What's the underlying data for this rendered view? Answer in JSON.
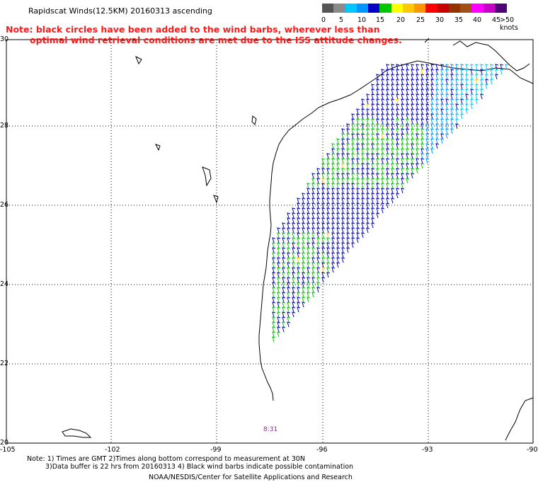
{
  "header": {
    "title": "Rapidscat Winds(12.5KM) 20160313 ascending",
    "note_line1": "Note: black circles have been added to the wind barbs, wherever less than",
    "note_line2": "optimal wind retrieval conditions are met due to the ISS attitude changes."
  },
  "legend": {
    "unit": "knots",
    "colors": [
      "#555555",
      "#8a8a8a",
      "#00c8ff",
      "#0096ff",
      "#0000c8",
      "#00c800",
      "#ffff00",
      "#ffc800",
      "#ff9600",
      "#ff0000",
      "#c80000",
      "#963200",
      "#a05014",
      "#ff00ff",
      "#c800c8",
      "#500078"
    ],
    "labels": [
      "0",
      "5",
      "10",
      "15",
      "20",
      "25",
      "30",
      "35",
      "40",
      "45",
      ">50 knots"
    ]
  },
  "axes": {
    "lon_labels": [
      "-105",
      "-102",
      "-99",
      "-96",
      "-93",
      "-90"
    ],
    "lat_labels": [
      "30",
      "28",
      "26",
      "24",
      "22",
      "20"
    ]
  },
  "map_text": {
    "timestamp": "8:31"
  },
  "footer": {
    "line1": "Note: 1) Times are GMT 2)Times along bottom correspond to measurement at 30N",
    "line2": "3)Data buffer is 22 hrs from 20160313 4) Black wind barbs indicate possible contamination",
    "line3": "NOAA/NESDIS/Center for Satellite Applications and Research"
  }
}
